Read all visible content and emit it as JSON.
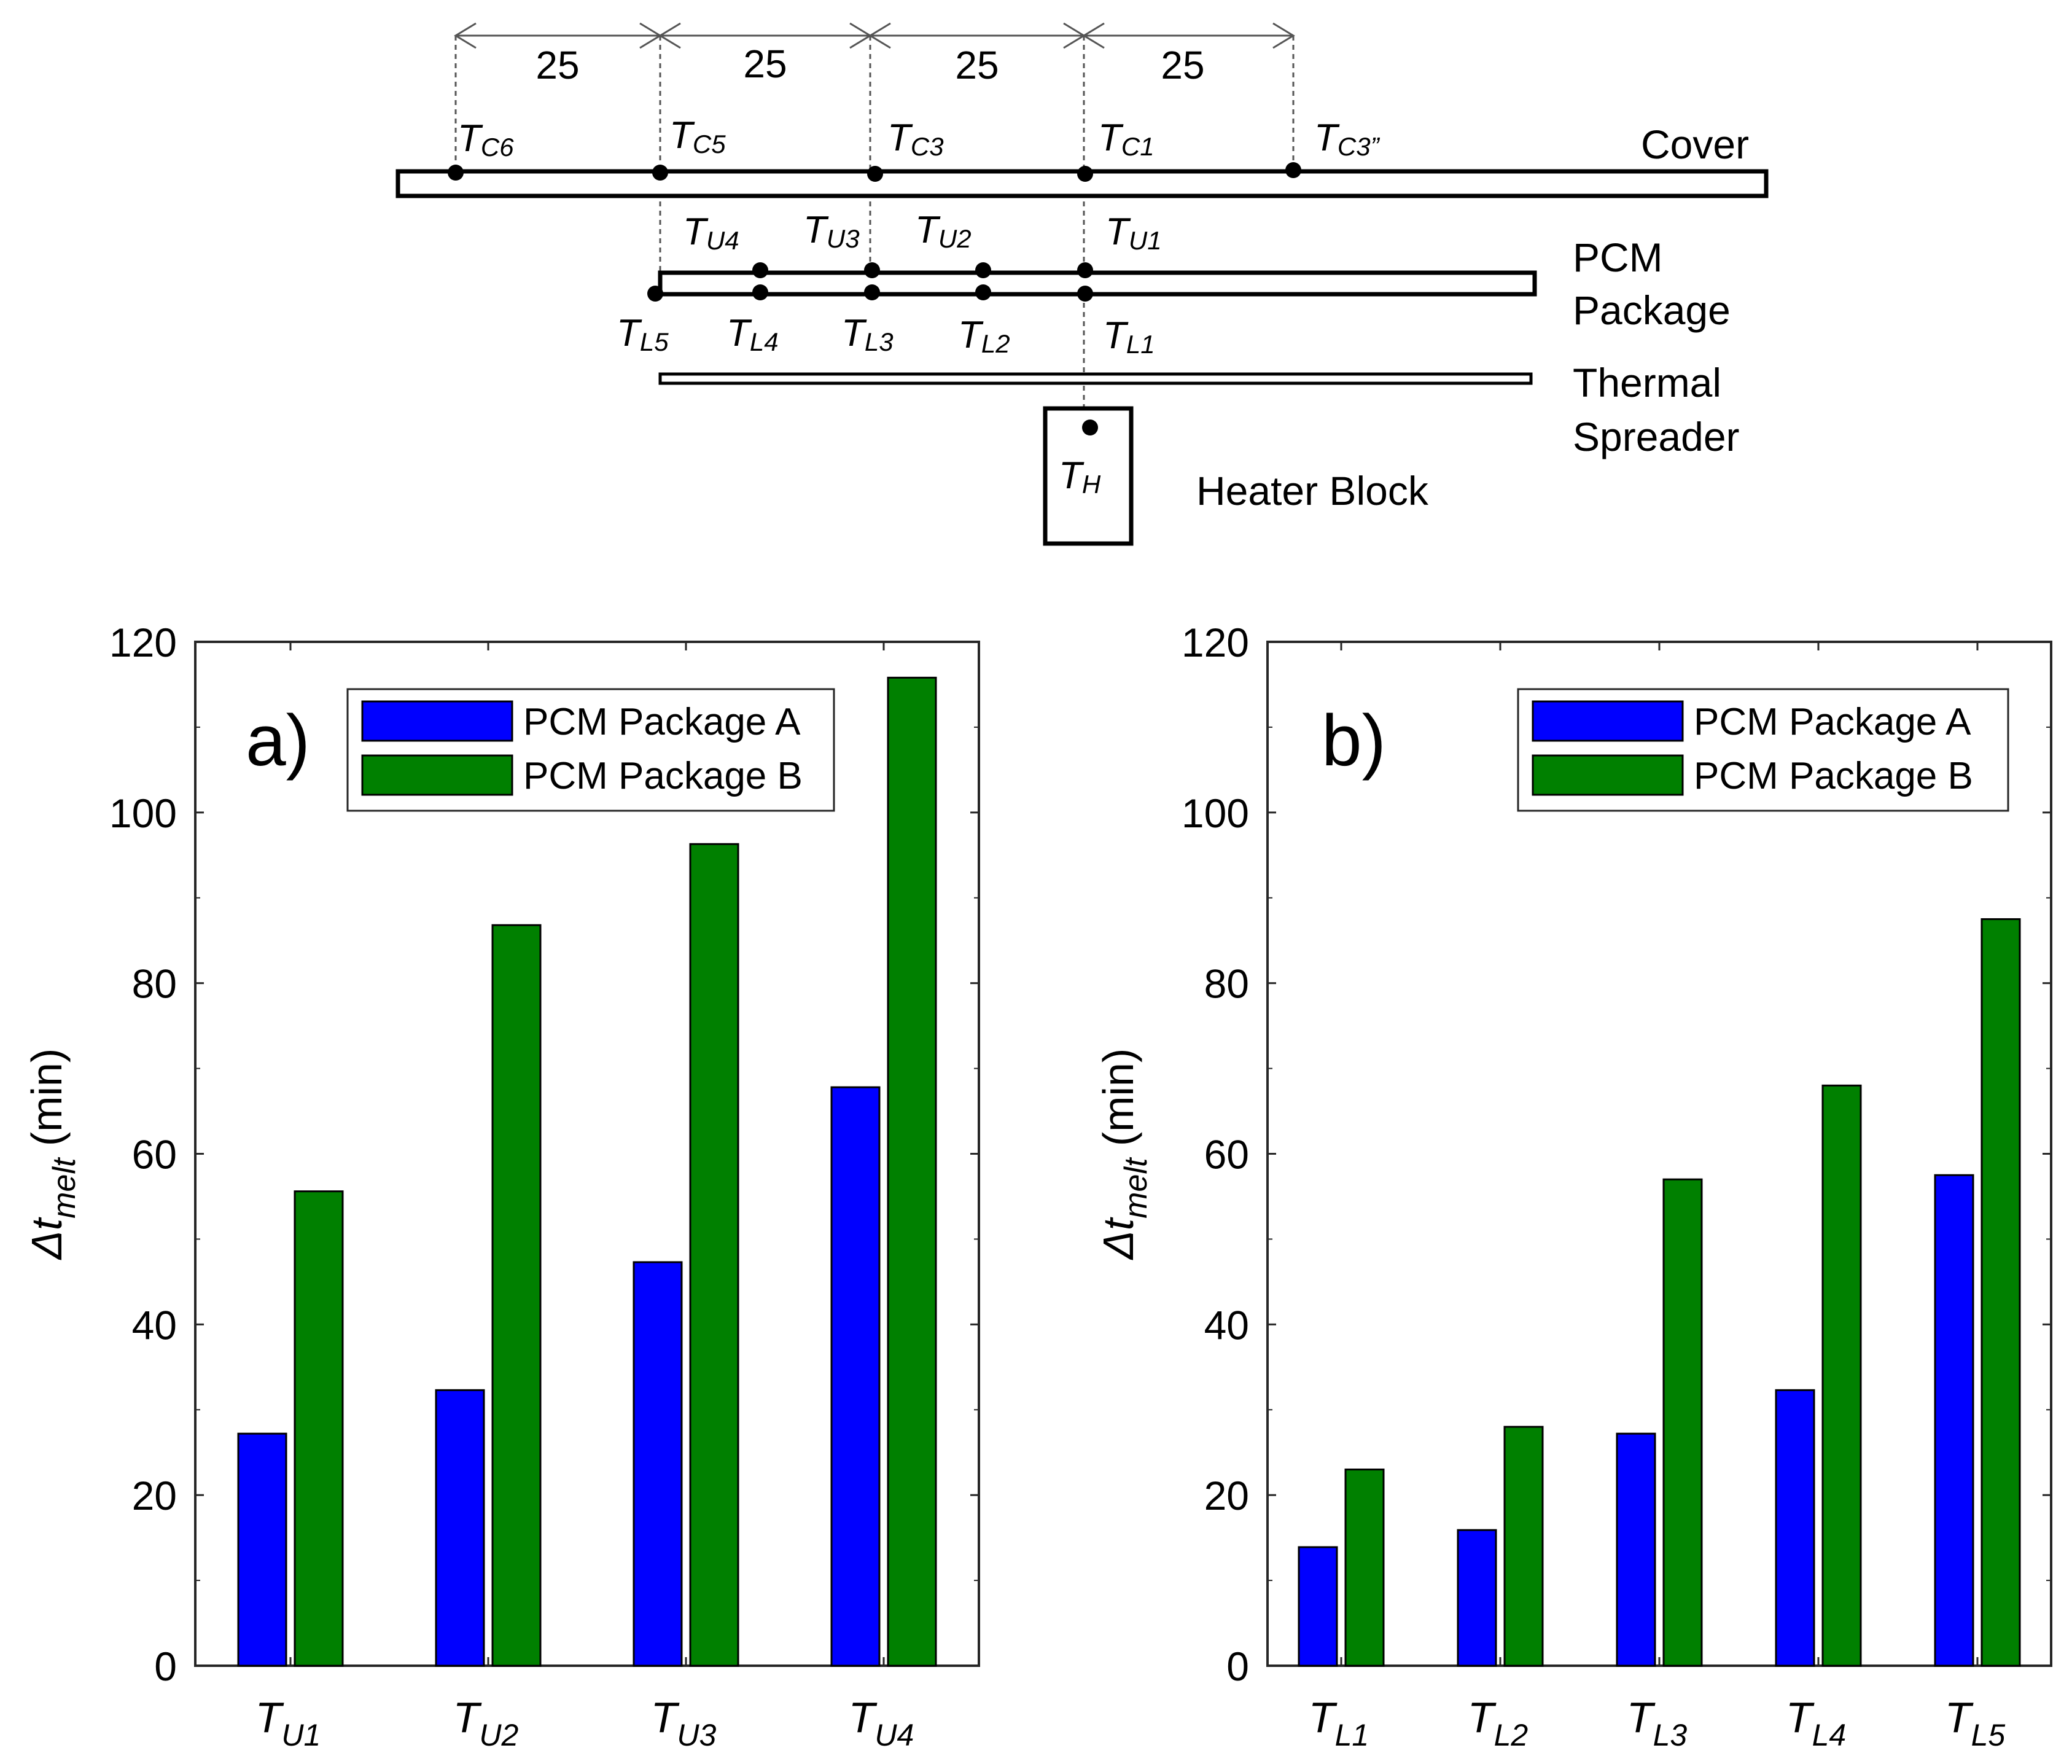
{
  "schematic": {
    "dimension_labels": [
      "25",
      "25",
      "25",
      "25"
    ],
    "cover_label": "Cover",
    "pcm_label_line1": "PCM",
    "pcm_label_line2": "Package",
    "spreader_label_line1": "Thermal",
    "spreader_label_line2": "Spreader",
    "heater_label": "Heater Block",
    "cover_sensors": [
      {
        "base": "T",
        "sub": "C6"
      },
      {
        "base": "T",
        "sub": "C5"
      },
      {
        "base": "T",
        "sub": "C3"
      },
      {
        "base": "T",
        "sub": "C1"
      },
      {
        "base": "T",
        "sub": "C3”"
      }
    ],
    "upper_sensors": [
      {
        "base": "T",
        "sub": "U4"
      },
      {
        "base": "T",
        "sub": "U3"
      },
      {
        "base": "T",
        "sub": "U2"
      },
      {
        "base": "T",
        "sub": "U1"
      }
    ],
    "lower_sensors": [
      {
        "base": "T",
        "sub": "L5"
      },
      {
        "base": "T",
        "sub": "L4"
      },
      {
        "base": "T",
        "sub": "L3"
      },
      {
        "base": "T",
        "sub": "L2"
      },
      {
        "base": "T",
        "sub": "L1"
      }
    ],
    "heater_sensor": {
      "base": "T",
      "sub": "H"
    }
  },
  "colors": {
    "series_a": "#0000ff",
    "series_b": "#008000",
    "axis": "#262626",
    "text": "#000000"
  },
  "chart_data": [
    {
      "type": "bar",
      "panel_label": "a)",
      "ylabel_delta": "Δ",
      "ylabel_t": "t",
      "ylabel_sub": "melt",
      "ylabel_unit": " (min)",
      "ylim": [
        0,
        120
      ],
      "yticks": [
        0,
        20,
        40,
        60,
        80,
        100,
        120
      ],
      "categories": [
        {
          "base": "T",
          "sub": "U1"
        },
        {
          "base": "T",
          "sub": "U2"
        },
        {
          "base": "T",
          "sub": "U3"
        },
        {
          "base": "T",
          "sub": "U4"
        }
      ],
      "series": [
        {
          "name": "PCM Package A",
          "values": [
            27.2,
            32.3,
            47.3,
            67.8
          ]
        },
        {
          "name": "PCM Package B",
          "values": [
            55.6,
            86.8,
            96.3,
            115.8
          ]
        }
      ],
      "legend": "top-right"
    },
    {
      "type": "bar",
      "panel_label": "b)",
      "ylabel_delta": "Δ",
      "ylabel_t": "t",
      "ylabel_sub": "melt",
      "ylabel_unit": " (min)",
      "ylim": [
        0,
        120
      ],
      "yticks": [
        0,
        20,
        40,
        60,
        80,
        100,
        120
      ],
      "categories": [
        {
          "base": "T",
          "sub": "L1"
        },
        {
          "base": "T",
          "sub": "L2"
        },
        {
          "base": "T",
          "sub": "L3"
        },
        {
          "base": "T",
          "sub": "L4"
        },
        {
          "base": "T",
          "sub": "L5"
        }
      ],
      "series": [
        {
          "name": "PCM Package A",
          "values": [
            13.9,
            15.9,
            27.2,
            32.3,
            57.5
          ]
        },
        {
          "name": "PCM Package B",
          "values": [
            23.0,
            28.0,
            57.0,
            68.0,
            87.5
          ]
        }
      ],
      "legend": "top-right"
    }
  ]
}
